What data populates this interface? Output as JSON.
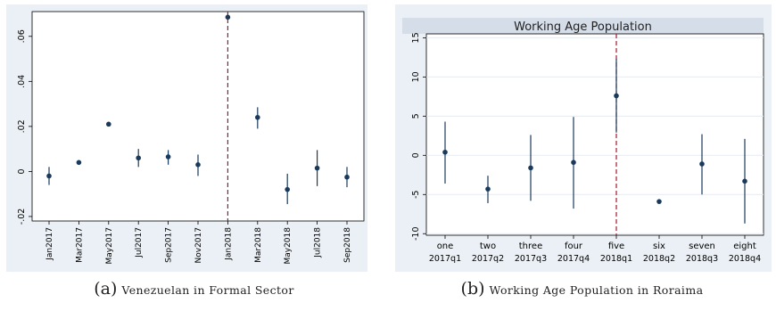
{
  "chart_data": [
    {
      "type": "scatter",
      "variant": "point-estimates-with-confidence-intervals",
      "title": "",
      "caption_prefix": "(a)",
      "caption": "Venezuelan in Formal Sector",
      "xlabel": "",
      "ylabel": "",
      "categories": [
        "Jan2017",
        "Mar2017",
        "May2017",
        "Jul2017",
        "Sep2017",
        "Nov2017",
        "Jan2018",
        "Mar2018",
        "May2018",
        "Jul2018",
        "Sep2018"
      ],
      "estimates": [
        -0.002,
        0.004,
        0.021,
        0.006,
        0.0065,
        0.003,
        0.0685,
        0.024,
        -0.008,
        0.0015,
        -0.0025
      ],
      "ci_low": [
        -0.006,
        0.004,
        0.021,
        0.002,
        0.003,
        -0.002,
        0.0685,
        0.019,
        -0.0145,
        -0.0065,
        -0.007
      ],
      "ci_high": [
        0.002,
        0.004,
        0.021,
        0.01,
        0.0095,
        0.0075,
        0.0685,
        0.0285,
        -0.001,
        0.0095,
        0.002
      ],
      "yticks": [
        -0.02,
        0,
        0.02,
        0.04,
        0.06
      ],
      "ytick_labels": [
        "-.02",
        "0",
        ".02",
        ".04",
        ".06"
      ],
      "ylim": [
        -0.022,
        0.071
      ],
      "reference_line_category": "Jan2018",
      "colors": {
        "marker": "#1a3a5c",
        "reference_line": "#9b1b30",
        "plot_bg": "#ffffff",
        "outer_bg": "#eaf0f5"
      }
    },
    {
      "type": "scatter",
      "variant": "point-estimates-with-confidence-intervals",
      "title": "Working Age Population",
      "caption_prefix": "(b)",
      "caption": "Working Age Population in Roraima",
      "xlabel": "",
      "ylabel": "",
      "categories": [
        "one",
        "two",
        "three",
        "four",
        "five",
        "six",
        "seven",
        "eight"
      ],
      "sublabels": [
        "2017q1",
        "2017q2",
        "2017q3",
        "2017q4",
        "2018q1",
        "2018q2",
        "2018q3",
        "2018q4"
      ],
      "estimates": [
        0.4,
        -4.3,
        -1.6,
        -0.9,
        7.6,
        -5.9,
        -1.1,
        -3.3
      ],
      "ci_low": [
        -3.6,
        -6.1,
        -5.8,
        -6.8,
        2.9,
        -5.9,
        -5.0,
        -8.7
      ],
      "ci_high": [
        4.3,
        -2.6,
        2.6,
        4.9,
        12.3,
        -5.9,
        2.7,
        2.1
      ],
      "yticks": [
        -10,
        -5,
        0,
        5,
        10,
        15
      ],
      "ytick_labels": [
        "-10",
        "-5",
        "0",
        "5",
        "10",
        "15"
      ],
      "ylim": [
        -10.2,
        15.5
      ],
      "reference_line_category": "five",
      "grid": true,
      "colors": {
        "marker": "#1a3a5c",
        "reference_line": "#9b1b30",
        "plot_bg": "#ffffff",
        "outer_bg": "#eaf0f5",
        "title_bg": "#d4dde8",
        "grid": "#e6ebf0"
      }
    }
  ]
}
